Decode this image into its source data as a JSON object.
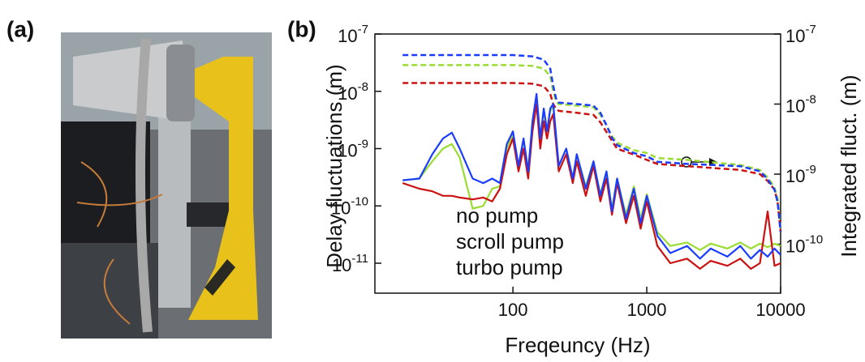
{
  "panel_labels": [
    "(a)",
    "(b)"
  ],
  "chart_data": {
    "type": "line",
    "xlabel": "Freqeuncy (Hz)",
    "ylabel": "Delay fluctuations (m)",
    "y2label": "Integrated fluct. (m)",
    "xscale": "log",
    "yscale": "log",
    "y2scale": "log",
    "xlim": [
      9.3,
      10000
    ],
    "ylim": [
      3e-12,
      1e-07
    ],
    "y2lim": [
      2e-11,
      1e-07
    ],
    "xticks": [
      100,
      1000,
      10000
    ],
    "yticks": [
      {
        "value": 1e-07,
        "label": "10",
        "exponent": "-7"
      },
      {
        "value": 1e-08,
        "label": "10",
        "exponent": "-8"
      },
      {
        "value": 1e-09,
        "label": "10",
        "exponent": "-9"
      },
      {
        "value": 1e-10,
        "label": "10",
        "exponent": "-10"
      },
      {
        "value": 1e-11,
        "label": "10",
        "exponent": "-11"
      }
    ],
    "y2ticks": [
      {
        "value": 1e-07,
        "label": "10",
        "exponent": "-7"
      },
      {
        "value": 1e-08,
        "label": "10",
        "exponent": "-8"
      },
      {
        "value": 1e-09,
        "label": "10",
        "exponent": "-9"
      },
      {
        "value": 1e-10,
        "label": "10",
        "exponent": "-10"
      }
    ],
    "x": [
      15,
      20,
      25,
      30,
      35,
      40,
      50,
      60,
      70,
      80,
      90,
      100,
      110,
      120,
      130,
      140,
      150,
      160,
      170,
      180,
      190,
      200,
      220,
      250,
      280,
      300,
      350,
      400,
      450,
      500,
      550,
      600,
      700,
      800,
      900,
      1000,
      1200,
      1500,
      2000,
      2500,
      3000,
      4000,
      5000,
      6000,
      7000,
      8000,
      9000,
      10000
    ],
    "series": [
      {
        "name": "no pump",
        "color": "#cc1111",
        "values": [
          2.5e-10,
          2e-10,
          1.8e-10,
          1.5e-10,
          1.5e-10,
          1.4e-10,
          1.3e-10,
          1.4e-10,
          1.2e-10,
          2e-10,
          8e-10,
          1.5e-09,
          4e-10,
          1e-09,
          3e-10,
          2e-09,
          6e-09,
          1e-09,
          3e-09,
          1.5e-09,
          3e-09,
          4e-09,
          4e-10,
          8e-10,
          2.5e-10,
          6e-10,
          1.5e-10,
          5e-10,
          1.2e-10,
          3e-10,
          7e-11,
          2.5e-10,
          5e-11,
          1.5e-10,
          4e-11,
          1.2e-10,
          2e-11,
          1e-11,
          1.2e-11,
          8e-12,
          1.1e-11,
          9e-12,
          1.2e-11,
          8e-12,
          1e-11,
          8e-11,
          9e-12,
          1e-11
        ]
      },
      {
        "name": "scroll pump",
        "color": "#99dd33",
        "values": [
          2.8e-10,
          3e-10,
          6e-10,
          1e-09,
          1.2e-09,
          7e-10,
          9e-11,
          1e-10,
          2e-10,
          2.2e-10,
          1e-09,
          1.8e-09,
          5e-10,
          1.4e-09,
          4e-10,
          2.5e-09,
          8e-09,
          1.4e-09,
          4.5e-09,
          2e-09,
          4.5e-09,
          5.5e-09,
          5e-10,
          1e-09,
          3e-10,
          8e-10,
          2.2e-10,
          6e-10,
          1.6e-10,
          4e-10,
          9e-11,
          3e-10,
          7e-11,
          2.2e-10,
          6e-11,
          1.6e-10,
          3.5e-11,
          2e-11,
          2.3e-11,
          1.7e-11,
          2.2e-11,
          1.8e-11,
          2.3e-11,
          1.8e-11,
          2.2e-11,
          1.9e-11,
          2.2e-11,
          2e-11
        ]
      },
      {
        "name": "turbo pump",
        "color": "#1a3cff",
        "values": [
          2.8e-10,
          3e-10,
          8e-10,
          1.5e-09,
          1.9e-09,
          1e-09,
          3e-10,
          2.5e-10,
          3e-10,
          2.5e-10,
          1.2e-09,
          2e-09,
          5e-10,
          1.5e-09,
          4e-10,
          3e-09,
          9e-09,
          1.5e-09,
          5e-09,
          2e-09,
          5e-09,
          6e-09,
          5e-10,
          1e-09,
          3e-10,
          8e-10,
          2e-10,
          6e-10,
          1.5e-10,
          4e-10,
          8e-11,
          3e-10,
          6e-11,
          2e-10,
          5e-11,
          1.5e-10,
          3e-11,
          1.5e-11,
          2e-11,
          1.2e-11,
          1.8e-11,
          1.3e-11,
          2e-11,
          1.2e-11,
          1.7e-11,
          1.3e-11,
          1.8e-11,
          1.4e-11
        ]
      },
      {
        "axis": "y2",
        "dash": true,
        "color": "#cc1111",
        "x": [
          15,
          100,
          140,
          170,
          190,
          200,
          210,
          220,
          300,
          400,
          450,
          500,
          550,
          600,
          800,
          1000,
          1200,
          2000,
          5000,
          7000,
          8000,
          9000,
          9500,
          10000
        ],
        "values": [
          2e-08,
          2e-08,
          1.95e-08,
          1.8e-08,
          1.4e-08,
          1e-08,
          8.5e-09,
          8e-09,
          7.5e-09,
          7e-09,
          5.5e-09,
          4e-09,
          3e-09,
          2.3e-09,
          1.9e-09,
          1.6e-09,
          1.4e-09,
          1.3e-09,
          1.15e-09,
          1e-09,
          8e-10,
          6e-10,
          4e-10,
          1.5e-10
        ]
      },
      {
        "axis": "y2",
        "dash": true,
        "color": "#99dd33",
        "x": [
          15,
          100,
          140,
          170,
          190,
          200,
          210,
          220,
          300,
          400,
          450,
          500,
          550,
          600,
          800,
          1000,
          1200,
          2000,
          5000,
          7000,
          8000,
          9000,
          9500,
          10000
        ],
        "values": [
          3.6e-08,
          3.6e-08,
          3.5e-08,
          3.2e-08,
          2.5e-08,
          1.5e-08,
          1.1e-08,
          1e-08,
          9.5e-09,
          9e-09,
          7e-09,
          5e-09,
          3.5e-09,
          2.8e-09,
          2.2e-09,
          2e-09,
          1.7e-09,
          1.6e-09,
          1.35e-09,
          1.15e-09,
          9e-10,
          6.5e-10,
          4.5e-10,
          1.6e-10
        ]
      },
      {
        "axis": "y2",
        "dash": true,
        "color": "#1a3cff",
        "x": [
          15,
          100,
          140,
          170,
          190,
          200,
          210,
          220,
          300,
          400,
          450,
          500,
          550,
          600,
          800,
          1000,
          1200,
          2000,
          5000,
          7000,
          8000,
          9000,
          9500,
          10000
        ],
        "values": [
          5e-08,
          5e-08,
          4.8e-08,
          4.3e-08,
          3.2e-08,
          1.8e-08,
          1.2e-08,
          1.05e-08,
          1e-08,
          9.5e-09,
          7.5e-09,
          5e-09,
          3.3e-09,
          2.6e-09,
          2e-09,
          1.8e-09,
          1.5e-09,
          1.4e-09,
          1.3e-09,
          1.1e-09,
          8.5e-10,
          6e-10,
          4e-10,
          1.5e-10
        ]
      }
    ]
  }
}
